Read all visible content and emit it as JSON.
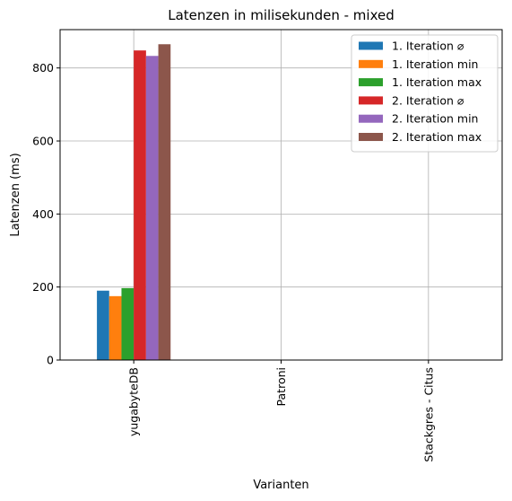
{
  "chart_data": {
    "type": "bar",
    "title": "Latenzen in milisekunden - mixed",
    "xlabel": "Varianten",
    "ylabel": "Latenzen (ms)",
    "categories": [
      "yugabyteDB",
      "Patroni",
      "Stackgres - Citus"
    ],
    "ylim": [
      0,
      905
    ],
    "yticks": [
      0,
      200,
      400,
      600,
      800
    ],
    "grid": true,
    "legend_position": "top-right",
    "series": [
      {
        "name": "1. Iteration ⌀",
        "color": "#1f77b4",
        "values": [
          190,
          0,
          0
        ]
      },
      {
        "name": "1. Iteration min",
        "color": "#ff7f0e",
        "values": [
          175,
          0,
          0
        ]
      },
      {
        "name": "1. Iteration max",
        "color": "#2ca02c",
        "values": [
          197,
          0,
          0
        ]
      },
      {
        "name": "2. Iteration ⌀",
        "color": "#d62728",
        "values": [
          848,
          0,
          0
        ]
      },
      {
        "name": "2. Iteration min",
        "color": "#9467bd",
        "values": [
          833,
          0,
          0
        ]
      },
      {
        "name": "2. Iteration max",
        "color": "#8c564b",
        "values": [
          865,
          0,
          0
        ]
      }
    ]
  }
}
